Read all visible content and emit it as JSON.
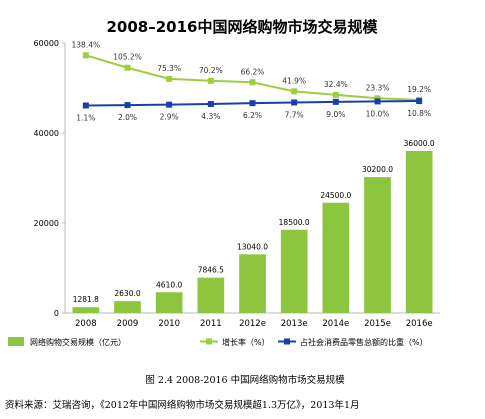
{
  "chart_data": {
    "type": "bar",
    "title": "2008–2016中国网络购物市场交易规模",
    "categories": [
      "2008",
      "2009",
      "2010",
      "2011",
      "2012e",
      "2013e",
      "2014e",
      "2015e",
      "2016e"
    ],
    "series": [
      {
        "name": "网络购物交易规模（亿元）",
        "type": "bar",
        "values": [
          1281.8,
          2630.0,
          4610.0,
          7846.5,
          13040.0,
          18500.0,
          24500.0,
          30200.0,
          36000.0
        ],
        "labels": [
          "1281.8",
          "2630.0",
          "4610.0",
          "7846.5",
          "13040.0",
          "18500.0",
          "24500.0",
          "30200.0",
          "36000.0"
        ],
        "color": "#8cc63e"
      },
      {
        "name": "增长率（%）",
        "type": "line",
        "values": [
          138.4,
          105.2,
          75.3,
          70.2,
          66.2,
          41.9,
          32.4,
          23.3,
          19.2
        ],
        "labels": [
          "138.4%",
          "105.2%",
          "75.3%",
          "70.2%",
          "66.2%",
          "41.9%",
          "32.4%",
          "23.3%",
          "19.2%"
        ],
        "color": "#9ccf3c"
      },
      {
        "name": "占社会消费品零售总额的比重（%）",
        "type": "line",
        "values": [
          1.1,
          2.0,
          2.9,
          4.3,
          6.2,
          7.7,
          9.0,
          10.0,
          10.8
        ],
        "labels": [
          "1.1%",
          "2.0%",
          "2.9%",
          "4.3%",
          "6.2%",
          "7.7%",
          "9.0%",
          "10.0%",
          "10.8%"
        ],
        "color": "#1a3fa8"
      }
    ],
    "yticks": [
      "60000",
      "40000",
      "20000",
      "0"
    ],
    "ylim": [
      0,
      60000
    ],
    "legend_position": "bottom"
  },
  "caption": "图 2.4   2008-2016 中国网络购物市场交易规模",
  "source": "资料来源：艾瑞咨询，《2012年中国网络购物市场交易规模超1.3万亿》，2013年1月"
}
